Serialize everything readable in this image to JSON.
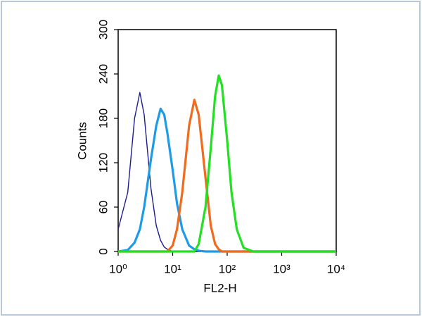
{
  "chart_data": {
    "type": "line",
    "x_label": "FL2-H",
    "y_label": "Counts",
    "xscale": "log",
    "xlim": [
      1,
      10000
    ],
    "ylim": [
      0,
      300
    ],
    "yticks": [
      0,
      60,
      120,
      180,
      240,
      300
    ],
    "xticks": [
      {
        "value": 1,
        "label": "10⁰"
      },
      {
        "value": 10,
        "label": "10¹"
      },
      {
        "value": 100,
        "label": "10²"
      },
      {
        "value": 1000,
        "label": "10³"
      },
      {
        "value": 10000,
        "label": "10⁴"
      }
    ],
    "x": [
      1,
      1.5,
      2,
      2.5,
      3,
      4,
      5,
      6,
      7,
      8,
      10,
      12,
      15,
      20,
      25,
      30,
      40,
      50,
      60,
      70,
      80,
      100,
      120,
      150,
      200,
      300,
      1000,
      10000
    ],
    "series": [
      {
        "color": "#1c1c8f",
        "values": [
          30,
          80,
          180,
          215,
          185,
          85,
          35,
          15,
          6,
          3,
          0,
          0,
          0,
          0,
          0,
          0,
          0,
          0,
          0,
          0,
          0,
          0,
          0,
          0,
          0,
          0,
          0,
          0
        ]
      },
      {
        "color": "#1e9be8",
        "values": [
          0,
          2,
          12,
          30,
          60,
          125,
          170,
          193,
          185,
          160,
          110,
          65,
          30,
          8,
          3,
          1,
          0,
          0,
          0,
          0,
          0,
          0,
          0,
          0,
          0,
          0,
          0,
          0
        ]
      },
      {
        "color": "#f26a1b",
        "values": [
          0,
          0,
          0,
          0,
          0,
          0,
          0,
          0,
          0,
          0,
          8,
          30,
          80,
          170,
          205,
          185,
          100,
          35,
          10,
          3,
          0,
          0,
          0,
          0,
          0,
          0,
          0,
          0
        ]
      },
      {
        "color": "#22e022",
        "values": [
          0,
          0,
          0,
          0,
          0,
          0,
          0,
          0,
          0,
          0,
          0,
          0,
          0,
          0,
          0,
          10,
          60,
          140,
          210,
          238,
          225,
          150,
          80,
          30,
          5,
          0,
          0,
          0
        ]
      }
    ]
  }
}
